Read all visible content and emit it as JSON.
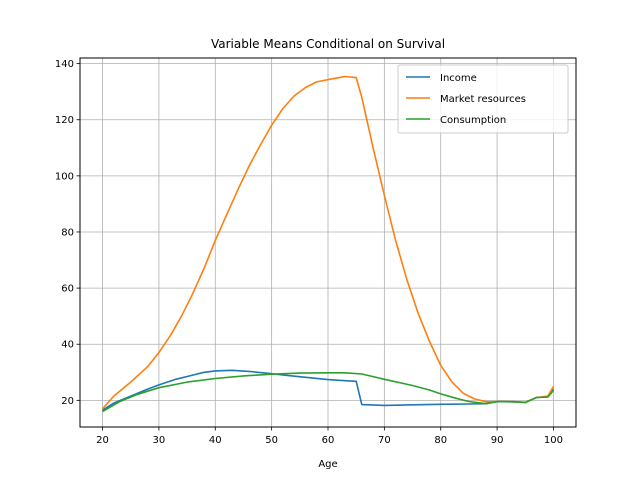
{
  "chart_data": {
    "type": "line",
    "title": "Variable Means Conditional on Survival",
    "xlabel": "Age",
    "ylabel": "",
    "xlim": [
      16,
      104
    ],
    "ylim": [
      10.5,
      142
    ],
    "xticks": [
      20,
      30,
      40,
      50,
      60,
      70,
      80,
      90,
      100
    ],
    "yticks": [
      20,
      40,
      60,
      80,
      100,
      120,
      140
    ],
    "grid": true,
    "legend_position": "top-right",
    "series": [
      {
        "name": "Income",
        "color": "#1f77b4",
        "points": [
          [
            20,
            16.5
          ],
          [
            22,
            19
          ],
          [
            25,
            21.5
          ],
          [
            28,
            24
          ],
          [
            30,
            25.5
          ],
          [
            33,
            27.5
          ],
          [
            36,
            29
          ],
          [
            38,
            30
          ],
          [
            40,
            30.5
          ],
          [
            43,
            30.7
          ],
          [
            46,
            30.3
          ],
          [
            50,
            29.5
          ],
          [
            53,
            28.8
          ],
          [
            56,
            28.2
          ],
          [
            60,
            27.4
          ],
          [
            63,
            27
          ],
          [
            65,
            26.8
          ],
          [
            66,
            18.5
          ],
          [
            70,
            18.2
          ],
          [
            75,
            18.4
          ],
          [
            80,
            18.6
          ],
          [
            85,
            18.7
          ],
          [
            88,
            18.8
          ],
          [
            90,
            19.6
          ],
          [
            93,
            19.4
          ],
          [
            95,
            19.3
          ],
          [
            97,
            21
          ],
          [
            99,
            21.2
          ],
          [
            100,
            24
          ]
        ]
      },
      {
        "name": "Market resources",
        "color": "#ff7f0e",
        "points": [
          [
            20,
            17
          ],
          [
            22,
            21.5
          ],
          [
            25,
            26.5
          ],
          [
            28,
            32
          ],
          [
            30,
            37
          ],
          [
            32,
            43
          ],
          [
            34,
            50
          ],
          [
            36,
            58
          ],
          [
            38,
            67
          ],
          [
            40,
            77
          ],
          [
            42,
            86
          ],
          [
            44,
            95
          ],
          [
            46,
            103.5
          ],
          [
            48,
            111
          ],
          [
            50,
            118
          ],
          [
            52,
            124
          ],
          [
            54,
            128.5
          ],
          [
            56,
            131.5
          ],
          [
            58,
            133.5
          ],
          [
            60,
            134.3
          ],
          [
            62,
            135
          ],
          [
            63,
            135.4
          ],
          [
            65,
            135
          ],
          [
            66,
            128
          ],
          [
            68,
            110
          ],
          [
            70,
            93
          ],
          [
            72,
            77
          ],
          [
            74,
            63
          ],
          [
            76,
            51
          ],
          [
            78,
            41
          ],
          [
            80,
            32.5
          ],
          [
            82,
            26.5
          ],
          [
            84,
            22.5
          ],
          [
            86,
            20.5
          ],
          [
            88,
            19.5
          ],
          [
            90,
            19.5
          ],
          [
            93,
            19.5
          ],
          [
            95,
            19.3
          ],
          [
            97,
            21
          ],
          [
            99,
            21.5
          ],
          [
            100,
            25
          ]
        ]
      },
      {
        "name": "Consumption",
        "color": "#2ca02c",
        "points": [
          [
            20,
            16
          ],
          [
            23,
            19.5
          ],
          [
            26,
            22
          ],
          [
            30,
            24.5
          ],
          [
            35,
            26.5
          ],
          [
            40,
            27.8
          ],
          [
            45,
            28.7
          ],
          [
            50,
            29.3
          ],
          [
            55,
            29.7
          ],
          [
            60,
            29.8
          ],
          [
            63,
            29.8
          ],
          [
            66,
            29.4
          ],
          [
            70,
            27.5
          ],
          [
            75,
            25.3
          ],
          [
            78,
            23.7
          ],
          [
            80,
            22.3
          ],
          [
            83,
            20.6
          ],
          [
            85,
            19.6
          ],
          [
            88,
            18.8
          ],
          [
            90,
            19.5
          ],
          [
            93,
            19.5
          ],
          [
            95,
            19.2
          ],
          [
            97,
            21
          ],
          [
            99,
            21.2
          ],
          [
            100,
            23.5
          ]
        ]
      }
    ]
  }
}
